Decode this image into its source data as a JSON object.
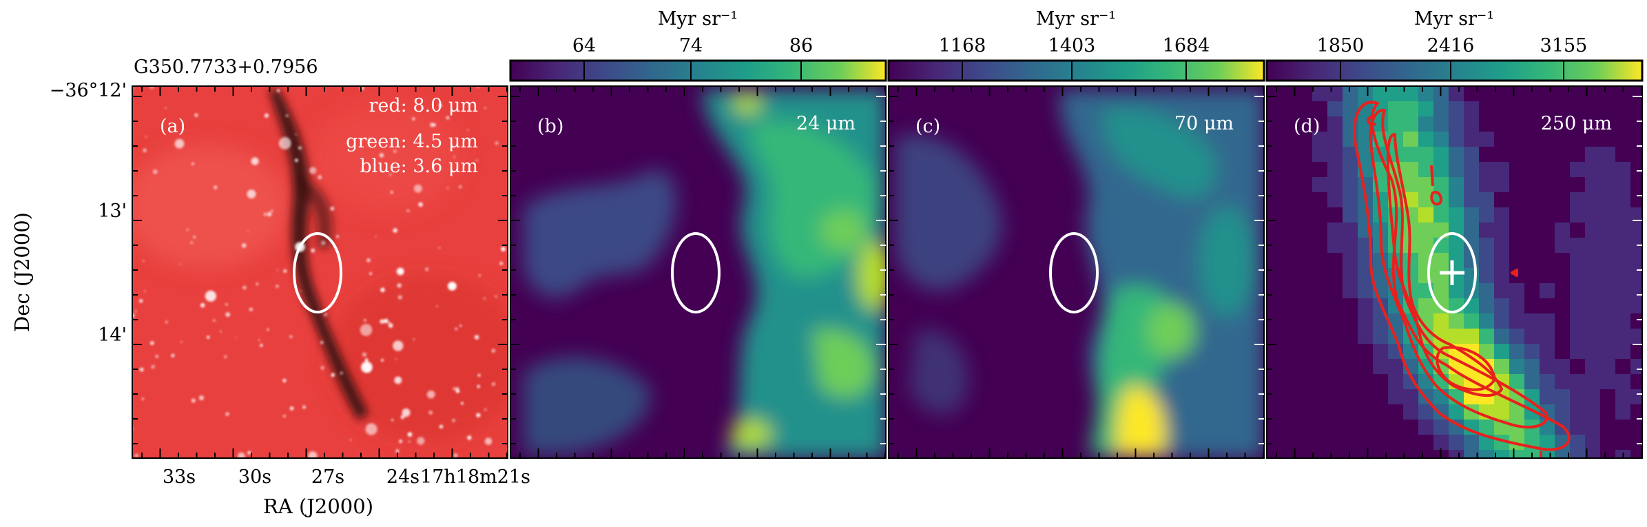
{
  "source_label": "G350.7733+0.7956",
  "axes": {
    "xlabel": "RA (J2000)",
    "ylabel": "Dec (J2000)",
    "xticks": [
      "33s",
      "30s",
      "27s",
      "24s",
      "17h18m21s"
    ],
    "yticks": [
      "−36°12'",
      "13'",
      "14'"
    ]
  },
  "panels": [
    {
      "id": "a",
      "tag": "(a)",
      "legend": [
        "red: 8.0 μm",
        "green: 4.5 μm",
        "blue: 3.6 μm"
      ]
    },
    {
      "id": "b",
      "tag": "(b)",
      "band": "24 μm",
      "colorbar": {
        "unit": "Myr sr⁻¹",
        "ticks": [
          "64",
          "74",
          "86"
        ]
      }
    },
    {
      "id": "c",
      "tag": "(c)",
      "band": "70 μm",
      "colorbar": {
        "unit": "Myr sr⁻¹",
        "ticks": [
          "1168",
          "1403",
          "1684"
        ]
      }
    },
    {
      "id": "d",
      "tag": "(d)",
      "band": "250 μm",
      "colorbar": {
        "unit": "Myr sr⁻¹",
        "ticks": [
          "1850",
          "2416",
          "3155"
        ]
      }
    }
  ],
  "colors": {
    "ellipse": "#ffffff",
    "contour": "#e8211d",
    "viridis_low": "#440154",
    "viridis_mid": "#21918c",
    "viridis_high": "#fde725"
  }
}
